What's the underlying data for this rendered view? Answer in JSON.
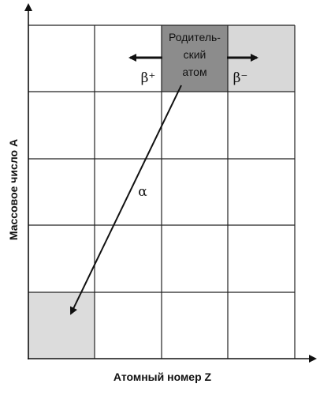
{
  "axes": {
    "y_label": "Массовое число A",
    "x_label": "Атомный номер Z"
  },
  "parent_atom": {
    "lines": [
      "Родитель-",
      "ский",
      "атом"
    ]
  },
  "decays": {
    "beta_plus": "β⁺",
    "beta_minus": "β⁻",
    "alpha": "α"
  }
}
